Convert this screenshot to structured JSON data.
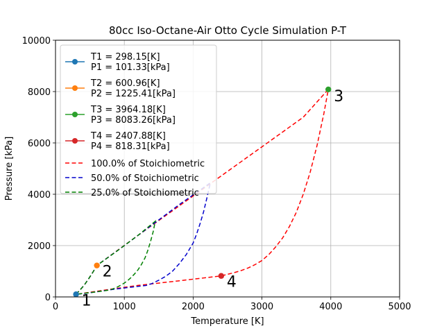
{
  "chart_data": {
    "type": "line",
    "title": "80cc Iso-Octane-Air Otto Cycle Simulation P-T",
    "xlabel": "Temperature [K]",
    "ylabel": "Pressure [kPa]",
    "xlim": [
      0,
      5000
    ],
    "ylim": [
      0,
      10000
    ],
    "xticks": [
      "0",
      "1000",
      "2000",
      "3000",
      "4000",
      "5000"
    ],
    "yticks": [
      "0",
      "2000",
      "4000",
      "6000",
      "8000",
      "10000"
    ],
    "grid": true,
    "legend_position": "upper-left",
    "points": [
      {
        "legend": [
          "T1 = 298.15[K]",
          "P1 = 101.33[kPa]"
        ],
        "label": "1",
        "x": 298.15,
        "y": 101.33,
        "color": "#1f77b4"
      },
      {
        "legend": [
          "T2 = 600.96[K]",
          "P2 = 1225.41[kPa]"
        ],
        "label": "2",
        "x": 600.96,
        "y": 1225.41,
        "color": "#ff7f0e"
      },
      {
        "legend": [
          "T3 = 3964.18[K]",
          "P3 = 8083.26[kPa]"
        ],
        "label": "3",
        "x": 3964.18,
        "y": 8083.26,
        "color": "#2ca02c"
      },
      {
        "legend": [
          "T4 = 2407.88[K]",
          "P4 = 818.31[kPa]"
        ],
        "label": "4",
        "x": 2407.88,
        "y": 818.31,
        "color": "#d62728"
      }
    ],
    "series": [
      {
        "name": "100.0% of Stoichiometric",
        "color": "#ff0000",
        "style": "dashed",
        "x": [
          298.15,
          360,
          420,
          480,
          540,
          600.96,
          1200,
          1800,
          2400,
          3000,
          3600,
          3964.18,
          3900,
          3800,
          3700,
          3600,
          3500,
          3400,
          3300,
          3200,
          3100,
          3000,
          2900,
          2800,
          2700,
          2600,
          2500,
          2407.88,
          1800,
          1200,
          800,
          500,
          298.15
        ],
        "y": [
          101.33,
          280,
          470,
          700,
          950,
          1225.41,
          2400,
          3550,
          4700,
          5850,
          7000,
          8083.26,
          7150,
          5900,
          4850,
          4000,
          3300,
          2750,
          2300,
          1950,
          1650,
          1420,
          1260,
          1130,
          1030,
          950,
          880,
          818.31,
          630,
          450,
          300,
          180,
          101.33
        ]
      },
      {
        "name": "50.0% of Stoichiometric",
        "color": "#0000cc",
        "style": "dashed",
        "x": [
          298.15,
          360,
          420,
          480,
          540,
          600.96,
          1000,
          1400,
          1800,
          2200,
          2250,
          2200,
          2150,
          2100,
          2050,
          2000,
          1900,
          1800,
          1700,
          1600,
          1500,
          1400,
          1320,
          1000,
          800,
          600,
          400,
          298.15
        ],
        "y": [
          101.33,
          280,
          470,
          700,
          950,
          1225.41,
          2000,
          2800,
          3600,
          4350,
          4450,
          3850,
          3300,
          2850,
          2450,
          2100,
          1650,
          1300,
          1000,
          800,
          650,
          520,
          450,
          350,
          280,
          200,
          130,
          101.33
        ]
      },
      {
        "name": "25.0% of Stoichiometric",
        "color": "#008000",
        "style": "dashed",
        "x": [
          298.15,
          360,
          420,
          480,
          540,
          600.96,
          900,
          1200,
          1450,
          1420,
          1380,
          1340,
          1300,
          1250,
          1200,
          1150,
          1100,
          1050,
          1000,
          950,
          900,
          850,
          790,
          600,
          450,
          350,
          298.15
        ],
        "y": [
          101.33,
          280,
          470,
          700,
          950,
          1225.41,
          1800,
          2400,
          2950,
          2550,
          2150,
          1800,
          1520,
          1270,
          1060,
          900,
          760,
          640,
          540,
          460,
          390,
          330,
          270,
          200,
          150,
          120,
          101.33
        ]
      }
    ]
  }
}
